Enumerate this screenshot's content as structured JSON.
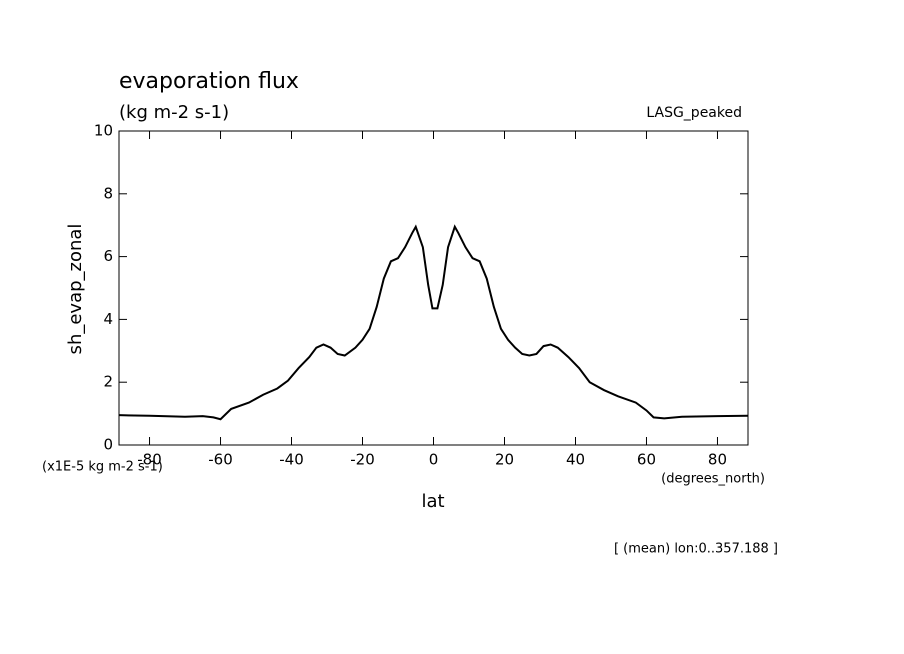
{
  "chart_data": {
    "type": "line",
    "title": "evaporation flux",
    "subtitle": "(kg m-2 s-1)",
    "dataset_label": "LASG_peaked",
    "ylabel": "sh_evap_zonal",
    "yunits": "(x1E-5 kg m-2 s-1)",
    "xlabel": "lat",
    "xunits": "(degrees_north)",
    "footnote": "[ (mean) lon:0..357.188 ]",
    "color": "#000000",
    "x": [
      -88.6,
      -80,
      -70,
      -65,
      -62,
      -60,
      -57,
      -52,
      -48,
      -44,
      -41,
      -38,
      -35,
      -33,
      -31,
      -29,
      -27,
      -25,
      -22,
      -20,
      -18,
      -16,
      -14,
      -12,
      -10,
      -8,
      -6,
      -5,
      -3,
      -1.5,
      -0.3,
      1.1,
      2.6,
      4.1,
      6,
      7,
      9,
      11,
      13,
      15,
      17,
      19,
      21,
      23,
      25,
      27,
      29,
      31,
      33,
      35,
      38,
      41,
      44,
      48,
      52,
      57,
      60,
      62,
      65,
      70,
      80,
      88.6
    ],
    "values": [
      0.95,
      0.93,
      0.9,
      0.92,
      0.88,
      0.82,
      1.15,
      1.35,
      1.6,
      1.8,
      2.05,
      2.45,
      2.8,
      3.1,
      3.2,
      3.1,
      2.9,
      2.85,
      3.1,
      3.35,
      3.7,
      4.4,
      5.3,
      5.85,
      5.95,
      6.3,
      6.75,
      6.95,
      6.3,
      5.1,
      4.35,
      4.35,
      5.1,
      6.3,
      6.95,
      6.75,
      6.3,
      5.95,
      5.85,
      5.3,
      4.4,
      3.7,
      3.35,
      3.1,
      2.9,
      2.85,
      2.9,
      3.15,
      3.2,
      3.1,
      2.8,
      2.45,
      2.0,
      1.75,
      1.55,
      1.35,
      1.1,
      0.88,
      0.85,
      0.9,
      0.92,
      0.93
    ],
    "xlim": [
      -88.6,
      88.6
    ],
    "ylim": [
      0,
      10
    ],
    "xticks": [
      -80,
      -60,
      -40,
      -20,
      0,
      20,
      40,
      60,
      80
    ],
    "yticks": [
      0,
      2,
      4,
      6,
      8,
      10
    ]
  }
}
